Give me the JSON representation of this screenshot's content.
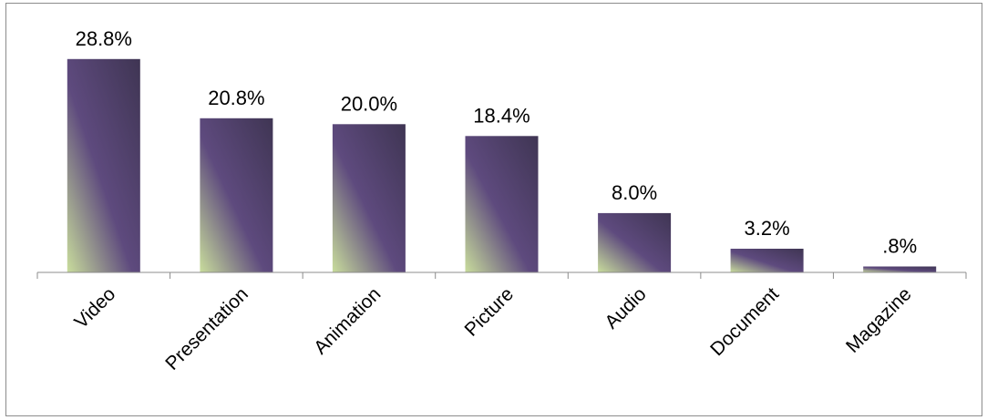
{
  "chart_data": {
    "type": "bar",
    "categories": [
      "Video",
      "Presentation",
      "Animation",
      "Picture",
      "Audio",
      "Document",
      "Magazine"
    ],
    "values": [
      28.8,
      20.8,
      20.0,
      18.4,
      8.0,
      3.2,
      0.8
    ],
    "data_labels": [
      "28.8%",
      "20.8%",
      "20.0%",
      "18.4%",
      "8.0%",
      "3.2%",
      ".8%"
    ],
    "title": "",
    "xlabel": "",
    "ylabel": "",
    "ylim": [
      0,
      30
    ],
    "grid": false,
    "legend": "none",
    "colors": {
      "bar_dark": "#3f3553",
      "bar_mid": "#5e4a7e",
      "bar_light": "#c9dd9c",
      "axis": "#8c8c8c",
      "frame": "#8c8c8c"
    }
  }
}
